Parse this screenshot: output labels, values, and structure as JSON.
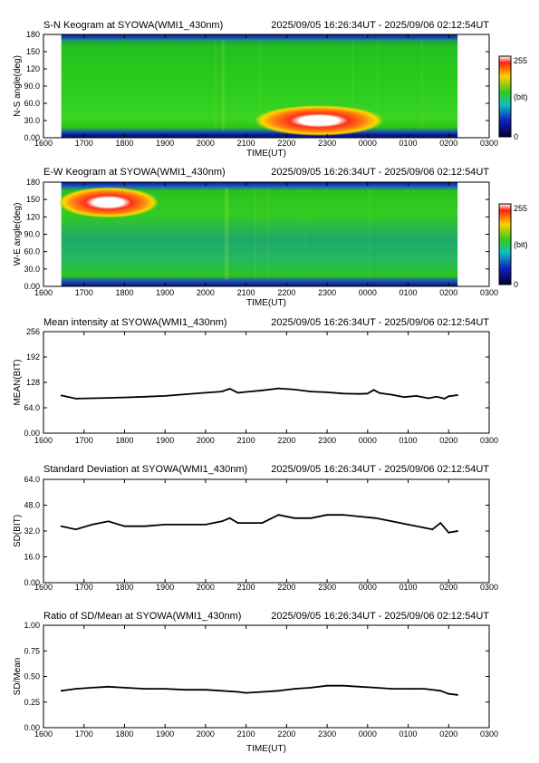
{
  "colors": {
    "background": "#ffffff",
    "axis": "#000000",
    "keogram_base": "#20c820",
    "keogram_edge": "#0a1a8c",
    "aurora_peak": "#ffffff",
    "aurora_mid": "#ff2010",
    "aurora_outer": "#ffd000"
  },
  "colorbar_labels": {
    "max": "255",
    "unit": "(bit)",
    "min": "0"
  },
  "time_ticks": [
    "1600",
    "1700",
    "1800",
    "1900",
    "2000",
    "2100",
    "2200",
    "2300",
    "0000",
    "0100",
    "0200",
    "0300"
  ],
  "chart_data": [
    {
      "type": "heatmap",
      "title": "S-N Keogram at SYOWA(WMI1_430nm)",
      "time_range": "2025/09/05 16:26:34UT - 2025/09/06 02:12:54UT",
      "xlabel": "TIME(UT)",
      "ylabel": "N-S angle(deg)",
      "yticks": [
        "0.00",
        "30.0",
        "60.0",
        "90.0",
        "120",
        "150",
        "180"
      ],
      "xlim": [
        16.0,
        27.0
      ],
      "ylim": [
        0,
        180
      ],
      "data_start_hour": 16.44,
      "data_end_hour": 26.22,
      "colorscale": "rainbow, 0-255 bit",
      "aurora_features": [
        {
          "hour_start": 21.2,
          "hour_end": 24.4,
          "peak_hour": 22.8,
          "angle_center": 30,
          "peak_bit": 255
        }
      ]
    },
    {
      "type": "heatmap",
      "title": "E-W Keogram at SYOWA(WMI1_430nm)",
      "time_range": "2025/09/05 16:26:34UT - 2025/09/06 02:12:54UT",
      "xlabel": "TIME(UT)",
      "ylabel": "W-E angle(deg)",
      "yticks": [
        "0.00",
        "30.0",
        "60.0",
        "90.0",
        "120",
        "150",
        "180"
      ],
      "xlim": [
        16.0,
        27.0
      ],
      "ylim": [
        0,
        180
      ],
      "data_start_hour": 16.44,
      "data_end_hour": 26.22,
      "colorscale": "rainbow, 0-255 bit",
      "aurora_features": [
        {
          "hour_start": 16.5,
          "hour_end": 19.0,
          "peak_hour": 17.6,
          "angle_center": 145,
          "peak_bit": 255
        }
      ]
    },
    {
      "type": "line",
      "title": "Mean intensity at SYOWA(WMI1_430nm)",
      "time_range": "2025/09/05 16:26:34UT - 2025/09/06 02:12:54UT",
      "xlabel": "",
      "ylabel": "MEAN(BIT)",
      "yticks": [
        "0.00",
        "64.0",
        "128",
        "192",
        "256"
      ],
      "xlim": [
        16.0,
        27.0
      ],
      "ylim": [
        0,
        256
      ],
      "x": [
        16.44,
        16.8,
        17.2,
        17.6,
        18.0,
        18.5,
        19.0,
        19.5,
        20.0,
        20.4,
        20.6,
        20.8,
        21.0,
        21.4,
        21.8,
        22.2,
        22.6,
        23.0,
        23.4,
        23.8,
        24.0,
        24.15,
        24.3,
        24.6,
        24.9,
        25.2,
        25.5,
        25.7,
        25.9,
        26.0,
        26.22
      ],
      "series": [
        {
          "values": [
            95,
            87,
            88,
            89,
            90,
            92,
            94,
            98,
            102,
            105,
            112,
            102,
            104,
            108,
            113,
            110,
            105,
            103,
            100,
            99,
            100,
            109,
            101,
            97,
            91,
            94,
            88,
            92,
            87,
            93,
            96
          ]
        }
      ]
    },
    {
      "type": "line",
      "title": "Standard Deviation at SYOWA(WMI1_430nm)",
      "time_range": "2025/09/05 16:26:34UT - 2025/09/06 02:12:54UT",
      "xlabel": "",
      "ylabel": "SD(BIT)",
      "yticks": [
        "0.00",
        "16.0",
        "32.0",
        "48.0",
        "64.0"
      ],
      "xlim": [
        16.0,
        27.0
      ],
      "ylim": [
        0,
        64
      ],
      "x": [
        16.44,
        16.8,
        17.2,
        17.6,
        18.0,
        18.5,
        19.0,
        19.5,
        20.0,
        20.4,
        20.6,
        20.8,
        21.0,
        21.4,
        21.8,
        22.2,
        22.6,
        23.0,
        23.4,
        23.8,
        24.2,
        24.6,
        25.0,
        25.4,
        25.6,
        25.8,
        26.0,
        26.22
      ],
      "series": [
        {
          "values": [
            35,
            33,
            36,
            38,
            35,
            35,
            36,
            36,
            36,
            38,
            40,
            37,
            37,
            37,
            42,
            40,
            40,
            42,
            42,
            41,
            40,
            38,
            36,
            34,
            33,
            37,
            31,
            32
          ]
        }
      ]
    },
    {
      "type": "line",
      "title": "Ratio of SD/Mean at SYOWA(WMI1_430nm)",
      "time_range": "2025/09/05 16:26:34UT - 2025/09/06 02:12:54UT",
      "xlabel": "TIME(UT)",
      "ylabel": "SD/Mean",
      "yticks": [
        "0.00",
        "0.25",
        "0.50",
        "0.75",
        "1.00"
      ],
      "xlim": [
        16.0,
        27.0
      ],
      "ylim": [
        0,
        1.0
      ],
      "x": [
        16.44,
        16.8,
        17.2,
        17.6,
        18.0,
        18.5,
        19.0,
        19.5,
        20.0,
        20.4,
        20.8,
        21.0,
        21.4,
        21.8,
        22.2,
        22.6,
        23.0,
        23.4,
        23.8,
        24.2,
        24.6,
        25.0,
        25.4,
        25.8,
        26.0,
        26.22
      ],
      "series": [
        {
          "values": [
            0.36,
            0.38,
            0.39,
            0.4,
            0.39,
            0.38,
            0.38,
            0.37,
            0.37,
            0.36,
            0.35,
            0.34,
            0.35,
            0.36,
            0.38,
            0.39,
            0.41,
            0.41,
            0.4,
            0.39,
            0.38,
            0.38,
            0.38,
            0.36,
            0.33,
            0.32
          ]
        }
      ]
    }
  ]
}
